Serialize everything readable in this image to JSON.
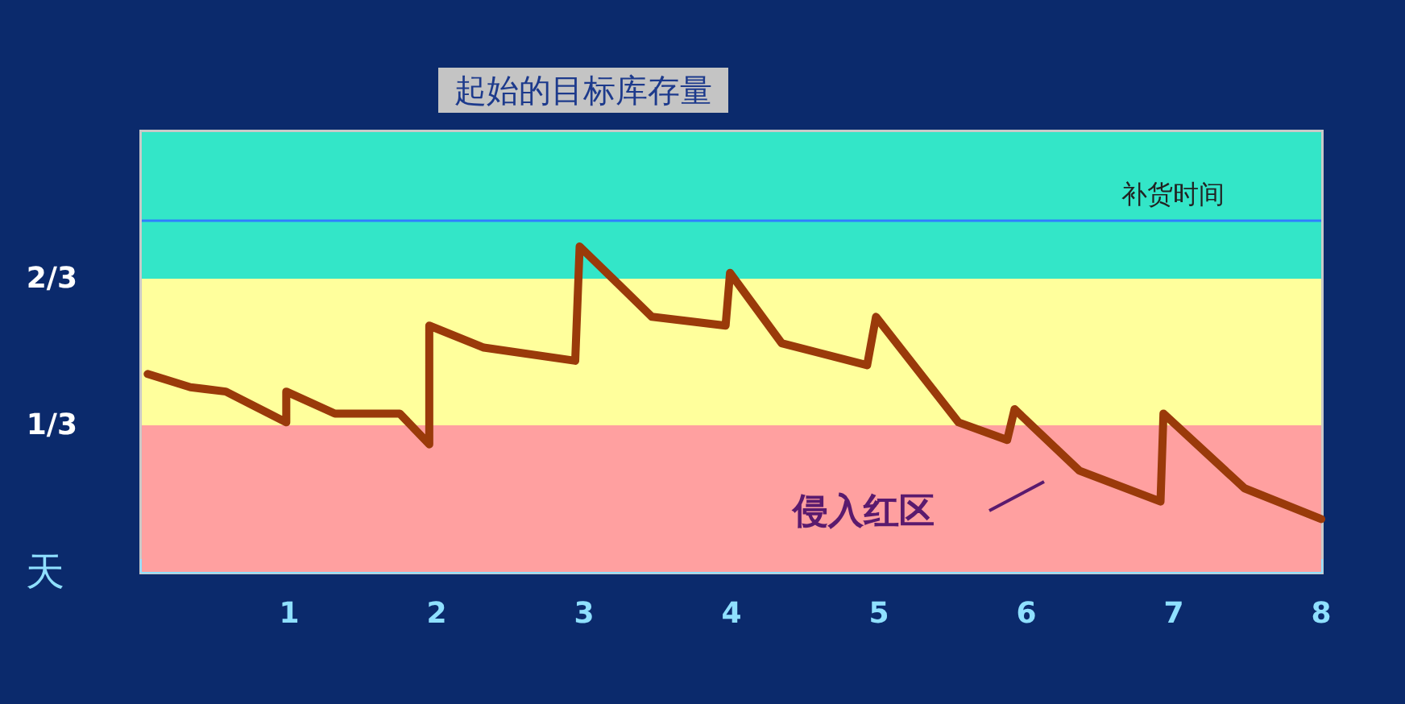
{
  "chart_data": {
    "type": "line",
    "title": "起始的目标库存量",
    "xlabel": "天",
    "annotations": [
      "侵入红区"
    ],
    "x": [
      0.04,
      0.33,
      0.57,
      0.98,
      0.98,
      1.31,
      1.75,
      1.95,
      1.95,
      2.32,
      2.94,
      2.97,
      3.46,
      3.96,
      3.99,
      4.34,
      4.92,
      4.98,
      5.54,
      5.87,
      5.92,
      6.36,
      6.91,
      6.93,
      7.48,
      8.0
    ],
    "series": [
      {
        "color": "#9a3a0a",
        "values": [
          0.45,
          0.42,
          0.41,
          0.34,
          0.41,
          0.36,
          0.36,
          0.29,
          0.56,
          0.51,
          0.48,
          0.74,
          0.58,
          0.56,
          0.68,
          0.52,
          0.47,
          0.58,
          0.34,
          0.3,
          0.37,
          0.23,
          0.16,
          0.36,
          0.19,
          0.12
        ]
      }
    ],
    "xlim": [
      0,
      8
    ],
    "xticks": [
      {
        "value": 0,
        "label": null
      },
      1,
      2,
      3,
      4,
      5,
      6,
      7,
      8
    ],
    "ylim": [
      0,
      1
    ],
    "yticks": [
      {
        "value": 0.3333,
        "label": "1/3"
      },
      {
        "value": 0.6667,
        "label": "2/3"
      }
    ],
    "bands": [
      {
        "axis": "y",
        "from": 0,
        "to": 0.3333,
        "color": "#ffa0a0"
      },
      {
        "axis": "y",
        "from": 0.3333,
        "to": 0.6667,
        "color": "#ffff9c"
      },
      {
        "axis": "y",
        "from": 0.6667,
        "to": 1,
        "color": "#33e6c8"
      }
    ],
    "ref_lines": [
      {
        "axis": "y",
        "value": 0.8,
        "label": "补货时间",
        "color": "#2f7fff"
      }
    ],
    "grid": false,
    "marker": "none",
    "line_style": "solid"
  }
}
